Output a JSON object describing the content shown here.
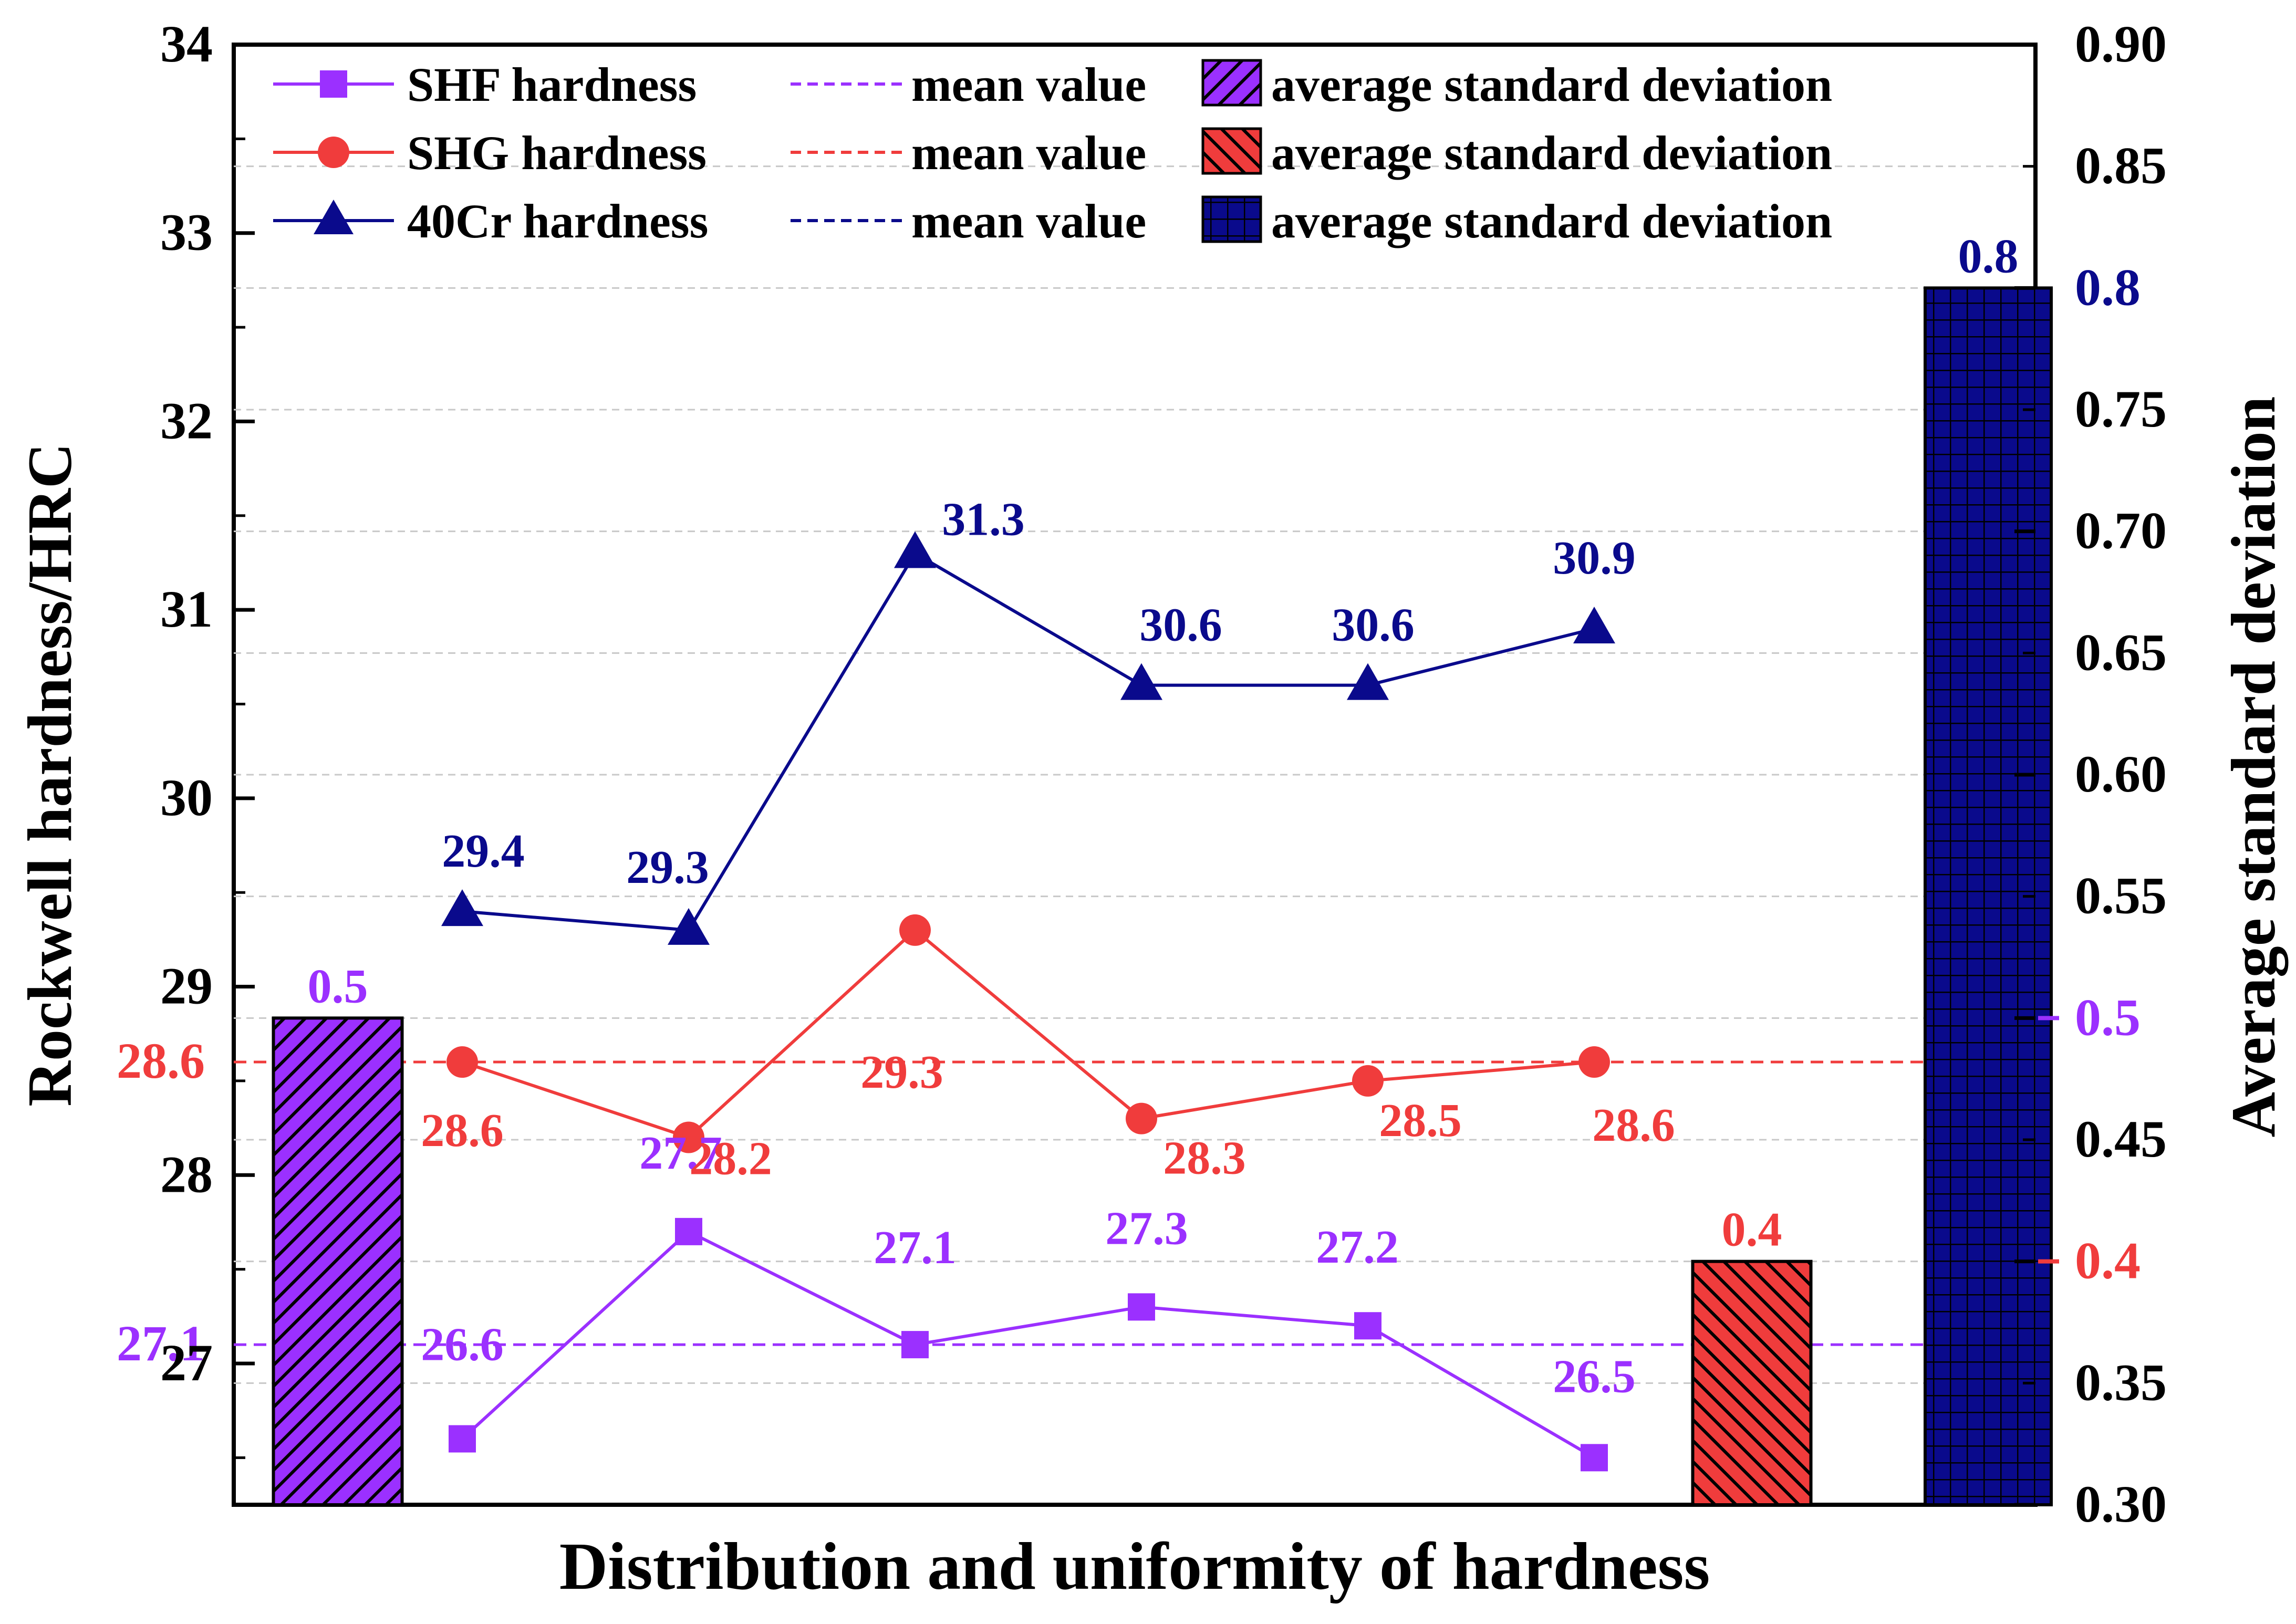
{
  "chart_data": {
    "type": "combo-line-bar",
    "xlabel": "Distribution and uniformity of hardness",
    "ylabel": "Rockwell hardness/HRC",
    "y2label": "Average standard deviation",
    "ylim": [
      26.25,
      34
    ],
    "y2lim": [
      0.3,
      0.9
    ],
    "yticks": [
      "27",
      "28",
      "29",
      "30",
      "31",
      "32",
      "33",
      "34"
    ],
    "y2ticks": [
      "0.30",
      "0.35",
      "0.40",
      "0.45",
      "0.50",
      "0.55",
      "0.60",
      "0.65",
      "0.70",
      "0.75",
      "0.80",
      "0.85",
      "0.90"
    ],
    "grid": "horizontal dashed",
    "legend_position": "top-left",
    "positions": [
      1,
      2,
      3,
      4,
      5,
      6
    ],
    "series": [
      {
        "name": "SHF hardness",
        "color": "#9B30FF",
        "marker": "square",
        "values": [
          26.6,
          27.7,
          27.1,
          27.3,
          27.2,
          26.5
        ],
        "labels": [
          "26.6",
          "27.7",
          "27.1",
          "27.3",
          "27.2",
          "26.5"
        ],
        "mean": 27.1,
        "mean_label": "27.1",
        "mean_legend": "mean value",
        "std": 0.5,
        "std_label": "0.5",
        "std_display": "0.5",
        "std_legend": "average standard deviation",
        "bar_pattern": "hatch-diag"
      },
      {
        "name": "SHG hardness",
        "color": "#F03C3C",
        "marker": "circle",
        "values": [
          28.6,
          28.2,
          29.3,
          28.3,
          28.5,
          28.6
        ],
        "labels": [
          "28.6",
          "28.2",
          "29.3",
          "28.3",
          "28.5",
          "28.6"
        ],
        "mean": 28.6,
        "mean_label": "28.6",
        "mean_legend": "mean value",
        "std": 0.4,
        "std_label": "0.4",
        "std_display": "0.4",
        "std_legend": "average standard deviation",
        "bar_pattern": "hatch-back"
      },
      {
        "name": "40Cr hardness",
        "color": "#0A0A8C",
        "marker": "triangle",
        "values": [
          29.4,
          29.3,
          31.3,
          30.6,
          30.6,
          30.9
        ],
        "labels": [
          "29.4",
          "29.3",
          "31.3",
          "30.6",
          "30.6",
          "30.9"
        ],
        "mean": null,
        "mean_label": "",
        "mean_legend": "mean value",
        "std": 0.8,
        "std_label": "0.8",
        "std_display": "0.8",
        "std_legend": "average standard deviation",
        "bar_pattern": "grid"
      }
    ]
  }
}
